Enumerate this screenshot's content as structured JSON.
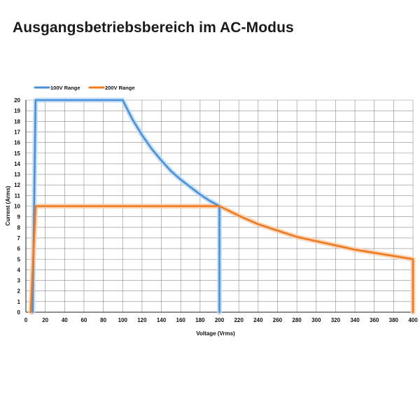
{
  "page": {
    "title": "Ausgangsbetriebsbereich im AC-Modus"
  },
  "chart_data": {
    "type": "line",
    "title": "Ausgangsbetriebsbereich im AC-Modus",
    "xlabel": "Voltage (Vrms)",
    "ylabel": "Current (Arms)",
    "xlim": [
      0,
      400
    ],
    "ylim": [
      0,
      20
    ],
    "xticks": [
      0,
      20,
      40,
      60,
      80,
      100,
      120,
      140,
      160,
      180,
      200,
      220,
      240,
      260,
      280,
      300,
      320,
      340,
      360,
      380,
      400
    ],
    "yticks": [
      0,
      1,
      2,
      3,
      4,
      5,
      6,
      7,
      8,
      9,
      10,
      11,
      12,
      13,
      14,
      15,
      16,
      17,
      18,
      19,
      20
    ],
    "grid": true,
    "legend_position": "top-left",
    "series": [
      {
        "name": "100V Range",
        "color": "#4a90d9",
        "glow": "#bcd9f4",
        "x": [
          7,
          10,
          100,
          110,
          120,
          130,
          140,
          150,
          160,
          170,
          180,
          190,
          200,
          200
        ],
        "y": [
          0,
          20,
          20,
          18.2,
          16.7,
          15.4,
          14.3,
          13.3,
          12.5,
          11.8,
          11.1,
          10.5,
          10,
          0
        ]
      },
      {
        "name": "200V Range",
        "color": "#ee7a1e",
        "glow": "#f9ccaa",
        "x": [
          5,
          10,
          200,
          220,
          240,
          260,
          280,
          300,
          320,
          340,
          360,
          380,
          400,
          400
        ],
        "y": [
          0,
          10,
          10,
          9.1,
          8.3,
          7.7,
          7.1,
          6.7,
          6.3,
          5.9,
          5.6,
          5.3,
          5,
          0
        ]
      }
    ]
  }
}
